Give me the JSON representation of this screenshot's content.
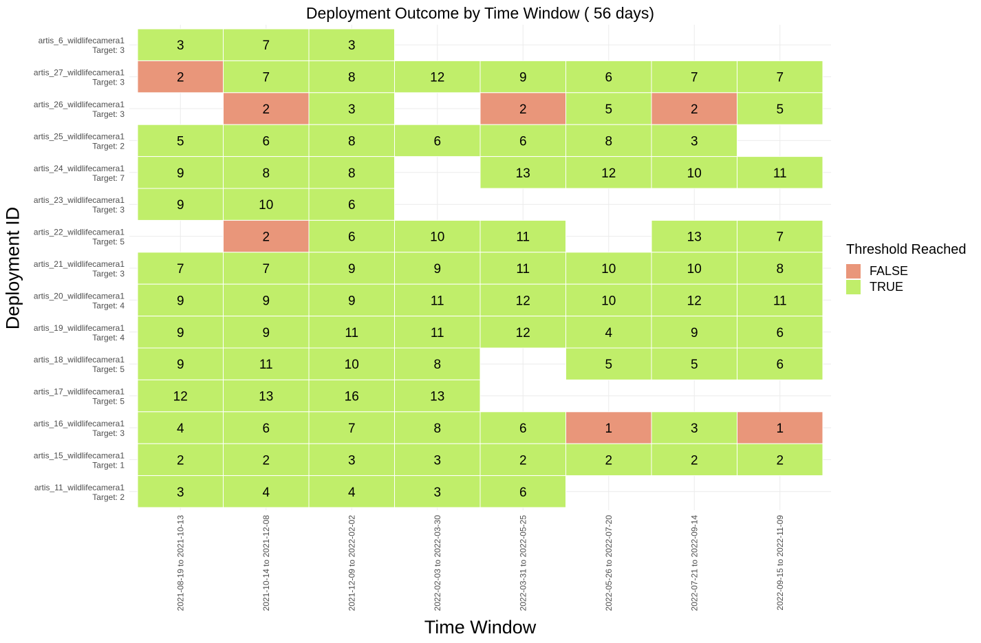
{
  "chart_data": {
    "type": "heatmap",
    "title": "Deployment Outcome by Time Window ( 56  days)",
    "xlabel": "Time Window",
    "ylabel": "Deployment ID",
    "x_categories": [
      "2021-08-19 to 2021-10-13",
      "2021-10-14 to 2021-12-08",
      "2021-12-09 to 2022-02-02",
      "2022-02-03 to 2022-03-30",
      "2022-03-31 to 2022-05-25",
      "2022-05-26 to 2022-07-20",
      "2022-07-21 to 2022-09-14",
      "2022-09-15 to 2022-11-09"
    ],
    "rows": [
      {
        "name": "artis_6_wildlifecamera1",
        "target": "Target: 3",
        "values": [
          3,
          7,
          3,
          null,
          null,
          null,
          null,
          null
        ]
      },
      {
        "name": "artis_27_wildlifecamera1",
        "target": "Target: 3",
        "values": [
          2,
          7,
          8,
          12,
          9,
          6,
          7,
          7
        ]
      },
      {
        "name": "artis_26_wildlifecamera1",
        "target": "Target: 3",
        "values": [
          null,
          2,
          3,
          null,
          2,
          5,
          2,
          5
        ]
      },
      {
        "name": "artis_25_wildlifecamera1",
        "target": "Target: 2",
        "values": [
          5,
          6,
          8,
          6,
          6,
          8,
          3,
          null
        ]
      },
      {
        "name": "artis_24_wildlifecamera1",
        "target": "Target: 7",
        "values": [
          9,
          8,
          8,
          null,
          13,
          12,
          10,
          11
        ]
      },
      {
        "name": "artis_23_wildlifecamera1",
        "target": "Target: 3",
        "values": [
          9,
          10,
          6,
          null,
          null,
          null,
          null,
          null
        ]
      },
      {
        "name": "artis_22_wildlifecamera1",
        "target": "Target: 5",
        "values": [
          null,
          2,
          6,
          10,
          11,
          null,
          13,
          7
        ]
      },
      {
        "name": "artis_21_wildlifecamera1",
        "target": "Target: 3",
        "values": [
          7,
          7,
          9,
          9,
          11,
          10,
          10,
          8
        ]
      },
      {
        "name": "artis_20_wildlifecamera1",
        "target": "Target: 4",
        "values": [
          9,
          9,
          9,
          11,
          12,
          10,
          12,
          11
        ]
      },
      {
        "name": "artis_19_wildlifecamera1",
        "target": "Target: 4",
        "values": [
          9,
          9,
          11,
          11,
          12,
          4,
          9,
          6
        ]
      },
      {
        "name": "artis_18_wildlifecamera1",
        "target": "Target: 5",
        "values": [
          9,
          11,
          10,
          8,
          null,
          5,
          5,
          6
        ]
      },
      {
        "name": "artis_17_wildlifecamera1",
        "target": "Target: 5",
        "values": [
          12,
          13,
          16,
          13,
          null,
          null,
          null,
          null
        ]
      },
      {
        "name": "artis_16_wildlifecamera1",
        "target": "Target: 3",
        "values": [
          4,
          6,
          7,
          8,
          6,
          1,
          3,
          1
        ]
      },
      {
        "name": "artis_15_wildlifecamera1",
        "target": "Target: 1",
        "values": [
          2,
          2,
          3,
          3,
          2,
          2,
          2,
          2
        ]
      },
      {
        "name": "artis_11_wildlifecamera1",
        "target": "Target: 2",
        "values": [
          3,
          4,
          4,
          3,
          6,
          null,
          null,
          null
        ]
      }
    ],
    "legend": {
      "title": "Threshold Reached",
      "placement": "right",
      "items": [
        {
          "label": "FALSE",
          "color": "#E9967A"
        },
        {
          "label": "TRUE",
          "color": "#C0EE6A"
        }
      ]
    },
    "grid": true
  }
}
